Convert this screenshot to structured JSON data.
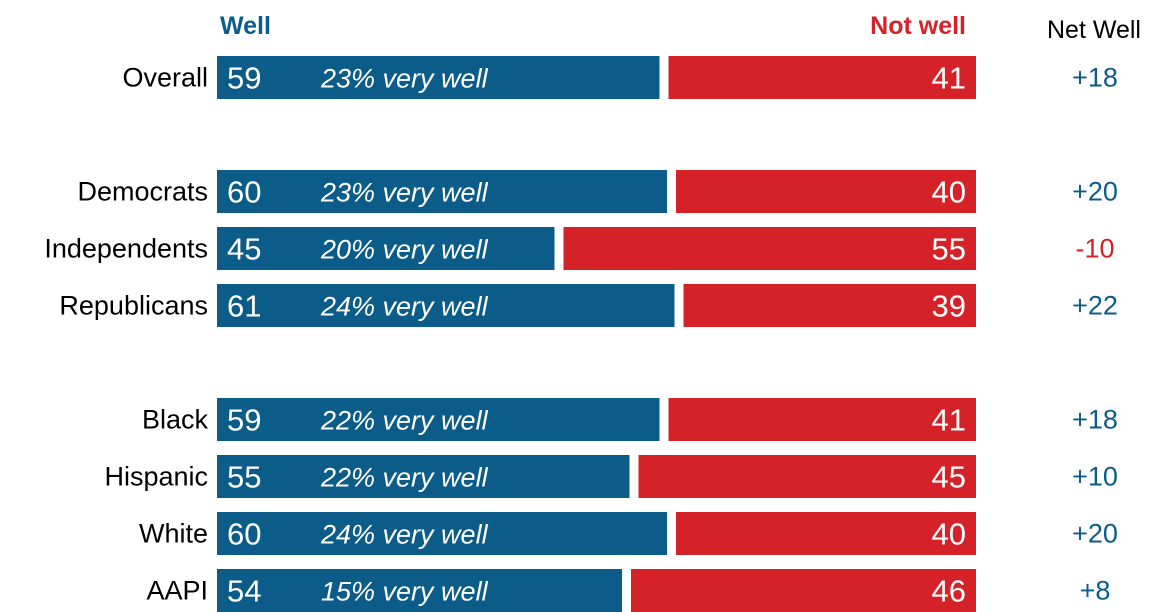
{
  "chart_data": {
    "type": "bar",
    "stacked": true,
    "orientation": "horizontal",
    "headers": {
      "well": "Well",
      "not_well": "Not well",
      "net": "Net Well"
    },
    "colors": {
      "well": "#0b5c88",
      "not_well": "#d42228",
      "net_positive": "#0b5c88",
      "net_negative": "#d42228",
      "text": "#000000"
    },
    "categories": [
      "Overall",
      "Democrats",
      "Independents",
      "Republicans",
      "Black",
      "Hispanic",
      "White",
      "AAPI"
    ],
    "groups": [
      [
        0
      ],
      [
        1,
        2,
        3
      ],
      [
        4,
        5,
        6,
        7
      ]
    ],
    "series": [
      {
        "name": "Well",
        "values": [
          59,
          60,
          45,
          61,
          59,
          55,
          60,
          54
        ]
      },
      {
        "name": "Not well",
        "values": [
          41,
          40,
          55,
          39,
          41,
          45,
          40,
          46
        ]
      }
    ],
    "well_labels": [
      "59",
      "60",
      "45",
      "61",
      "59",
      "55",
      "60",
      "54"
    ],
    "not_well_labels": [
      "41",
      "40",
      "55",
      "39",
      "41",
      "45",
      "40",
      "46"
    ],
    "very_well_labels": [
      "23% very well",
      "23% very well",
      "20% very well",
      "24% very well",
      "22% very well",
      "22% very well",
      "24% very well",
      "15% very well"
    ],
    "net_labels": [
      "+18",
      "+20",
      "-10",
      "+22",
      "+18",
      "+10",
      "+20",
      "+8"
    ],
    "net_values": [
      18,
      20,
      -10,
      22,
      18,
      10,
      20,
      8
    ]
  }
}
